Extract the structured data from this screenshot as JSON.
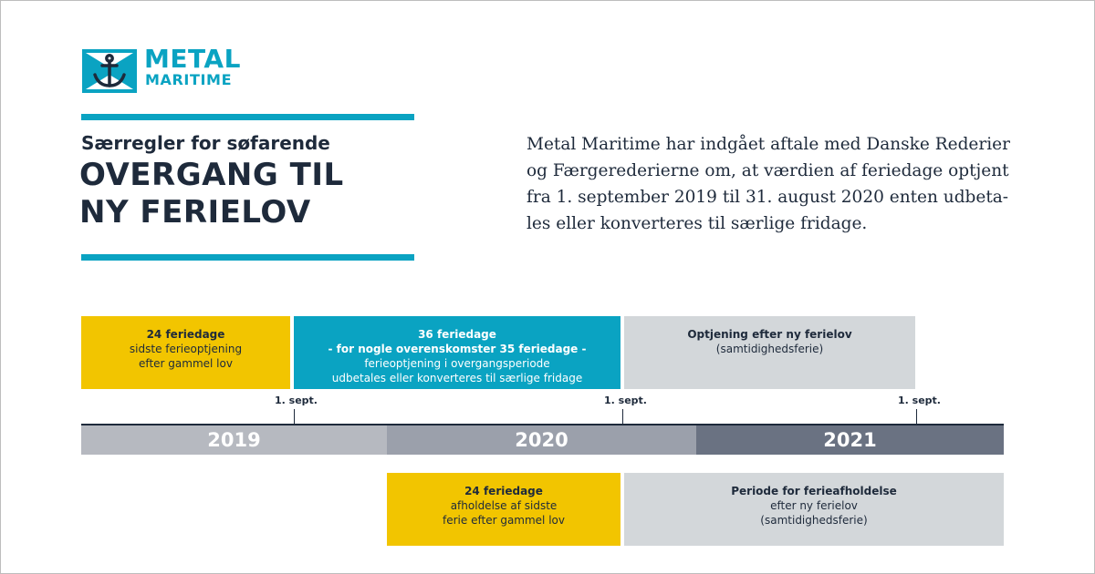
{
  "brand": {
    "line1": "METAL",
    "line2": "MARITIME",
    "accent_color": "#0aa3c2",
    "icon": "anchor-icon"
  },
  "header": {
    "subtitle": "Særregler for søfarende",
    "title_line1": "OVERGANG TIL",
    "title_line2": "NY FERIELOV"
  },
  "intro": {
    "line1": "Metal Maritime har indgået aftale med Danske Rederier",
    "line2": "og Færgerederierne om, at værdien af feriedage optjent",
    "line3": "fra 1. september 2019 til 31. august 2020 enten udbeta-",
    "line4": "les eller konverteres til særlige fridage."
  },
  "timeline": {
    "top_blocks": [
      {
        "title": "24 feriedage",
        "lines": [
          "sidste ferieoptjening",
          "efter gammel lov"
        ],
        "color": "#f2c500"
      },
      {
        "title": "36 feriedage",
        "lines": [
          "- for nogle overenskomster 35 feriedage -",
          "ferieoptjening i overgangsperiode",
          "udbetales eller konverteres til særlige fridage"
        ],
        "color": "#0aa3c2"
      },
      {
        "title": "Optjening efter ny ferielov",
        "lines": [
          "(samtidighedsferie)"
        ],
        "color": "#d3d7da"
      }
    ],
    "tick_labels": [
      "1. sept.",
      "1. sept.",
      "1. sept."
    ],
    "years": [
      {
        "label": "2019",
        "color": "#b6b9c0"
      },
      {
        "label": "2020",
        "color": "#9ba0ab"
      },
      {
        "label": "2021",
        "color": "#6a7282"
      }
    ],
    "bottom_blocks": [
      {
        "title": "24 feriedage",
        "lines": [
          "afholdelse af sidste",
          "ferie efter gammel lov"
        ],
        "color": "#f2c500"
      },
      {
        "title": "Periode for ferieafholdelse",
        "lines": [
          "efter ny ferielov",
          "(samtidighedsferie)"
        ],
        "color": "#d3d7da"
      }
    ]
  }
}
